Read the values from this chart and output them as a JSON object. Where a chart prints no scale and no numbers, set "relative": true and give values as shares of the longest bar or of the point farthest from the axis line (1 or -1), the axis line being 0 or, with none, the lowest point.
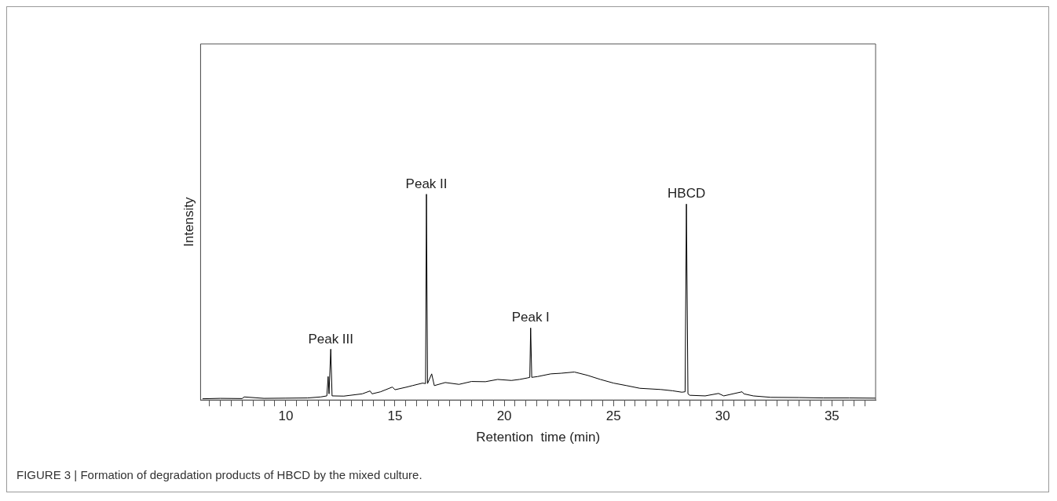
{
  "chart_data": {
    "type": "line",
    "relative": true,
    "xlabel": "Retention  time (min)",
    "ylabel": "Intensity",
    "xlim": [
      6.1,
      37
    ],
    "xticks": [
      {
        "value": 6.5,
        "label": null
      },
      {
        "value": 7,
        "label": null
      },
      {
        "value": 7.5,
        "label": null
      },
      {
        "value": 8,
        "label": null
      },
      {
        "value": 8.5,
        "label": null
      },
      {
        "value": 9,
        "label": null
      },
      {
        "value": 9.5,
        "label": null
      },
      10,
      {
        "value": 10.5,
        "label": null
      },
      {
        "value": 11,
        "label": null
      },
      {
        "value": 11.5,
        "label": null
      },
      {
        "value": 12,
        "label": null
      },
      {
        "value": 12.5,
        "label": null
      },
      {
        "value": 13,
        "label": null
      },
      {
        "value": 13.5,
        "label": null
      },
      {
        "value": 14,
        "label": null
      },
      {
        "value": 14.5,
        "label": null
      },
      15,
      {
        "value": 15.5,
        "label": null
      },
      {
        "value": 16,
        "label": null
      },
      {
        "value": 16.5,
        "label": null
      },
      {
        "value": 17,
        "label": null
      },
      {
        "value": 17.5,
        "label": null
      },
      {
        "value": 18,
        "label": null
      },
      {
        "value": 18.5,
        "label": null
      },
      {
        "value": 19,
        "label": null
      },
      {
        "value": 19.5,
        "label": null
      },
      20,
      {
        "value": 20.5,
        "label": null
      },
      {
        "value": 21,
        "label": null
      },
      {
        "value": 21.5,
        "label": null
      },
      {
        "value": 22,
        "label": null
      },
      {
        "value": 22.5,
        "label": null
      },
      {
        "value": 23,
        "label": null
      },
      {
        "value": 23.5,
        "label": null
      },
      {
        "value": 24,
        "label": null
      },
      {
        "value": 24.5,
        "label": null
      },
      25,
      {
        "value": 25.5,
        "label": null
      },
      {
        "value": 26,
        "label": null
      },
      {
        "value": 26.5,
        "label": null
      },
      {
        "value": 27,
        "label": null
      },
      {
        "value": 27.5,
        "label": null
      },
      {
        "value": 28,
        "label": null
      },
      {
        "value": 28.5,
        "label": null
      },
      {
        "value": 29,
        "label": null
      },
      {
        "value": 29.5,
        "label": null
      },
      30,
      {
        "value": 30.5,
        "label": null
      },
      {
        "value": 31,
        "label": null
      },
      {
        "value": 31.5,
        "label": null
      },
      {
        "value": 32,
        "label": null
      },
      {
        "value": 32.5,
        "label": null
      },
      {
        "value": 33,
        "label": null
      },
      {
        "value": 33.5,
        "label": null
      },
      {
        "value": 34,
        "label": null
      },
      {
        "value": 34.5,
        "label": null
      },
      35,
      {
        "value": 35.5,
        "label": null
      },
      {
        "value": 36,
        "label": null
      },
      {
        "value": 36.5,
        "label": null
      }
    ],
    "series": [
      {
        "color": "#000000",
        "x": [
          6.19,
          7,
          8,
          8.1,
          9,
          10,
          11,
          11.6,
          11.88,
          11.94,
          11.98,
          12.06,
          12.12,
          12.66,
          13.5,
          13.86,
          13.95,
          14.34,
          14.88,
          15,
          15.54,
          15.8,
          16.26,
          16.4,
          16.44,
          16.49,
          16.68,
          16.8,
          17.3,
          17.93,
          18.5,
          19.14,
          19.7,
          20.33,
          20.7,
          21.05,
          21.17,
          21.21,
          21.26,
          21.53,
          22.13,
          22.6,
          23.21,
          23.81,
          24.4,
          25.01,
          25.6,
          26.21,
          27.17,
          27.7,
          28.13,
          28.28,
          28.34,
          28.41,
          28.49,
          29.2,
          29.81,
          30.05,
          30.89,
          30.97,
          31.4,
          32.21,
          33.5,
          34.6,
          35.8,
          37
        ],
        "values": [
          0.006,
          0.008,
          0.007,
          0.015,
          0.008,
          0.009,
          0.01,
          0.015,
          0.02,
          0.114,
          0.03,
          0.247,
          0.02,
          0.019,
          0.03,
          0.044,
          0.03,
          0.04,
          0.063,
          0.05,
          0.063,
          0.07,
          0.082,
          0.08,
          1.0,
          0.08,
          0.127,
          0.07,
          0.085,
          0.076,
          0.09,
          0.089,
          0.1,
          0.095,
          0.1,
          0.107,
          0.11,
          0.35,
          0.11,
          0.114,
          0.127,
          0.13,
          0.136,
          0.12,
          0.1,
          0.082,
          0.07,
          0.057,
          0.051,
          0.045,
          0.038,
          0.04,
          0.952,
          0.03,
          0.023,
          0.02,
          0.032,
          0.02,
          0.04,
          0.03,
          0.02,
          0.013,
          0.012,
          0.01,
          0.01,
          0.009
        ]
      }
    ],
    "annotations": [
      {
        "text": "Peak III",
        "x": 12.06,
        "y": 0.247
      },
      {
        "text": "Peak II",
        "x": 16.44,
        "y": 1.0
      },
      {
        "text": "Peak I",
        "x": 21.21,
        "y": 0.35
      },
      {
        "text": "HBCD",
        "x": 28.34,
        "y": 0.952
      },
      "FIGURE 3 | Formation of degradation products of HBCD by the mixed culture."
    ]
  }
}
